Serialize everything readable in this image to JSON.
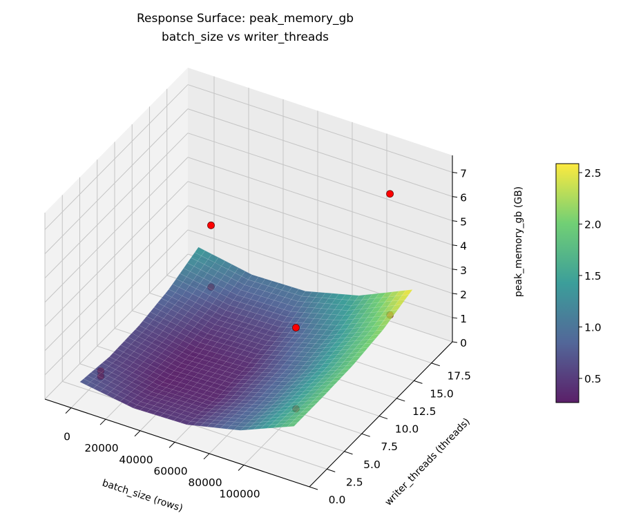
{
  "chart_data": {
    "type": "surface3d",
    "title": "Response Surface: peak_memory_gb",
    "subtitle": "batch_size vs writer_threads",
    "xlabel": "batch_size (rows)",
    "ylabel": "writer_threads (threads)",
    "zlabel": "peak_memory_gb (GB)",
    "xlim": [
      -15200,
      138000
    ],
    "ylim": [
      0,
      20.5
    ],
    "zlim": [
      0,
      7.7
    ],
    "x_ticks": [
      "0",
      "20000",
      "40000",
      "60000",
      "80000",
      "100000"
    ],
    "y_ticks": [
      "0.0",
      "2.5",
      "5.0",
      "7.5",
      "10.0",
      "12.5",
      "15.0",
      "17.5"
    ],
    "z_ticks": [
      "0",
      "1",
      "2",
      "3",
      "4",
      "5",
      "6",
      "7"
    ],
    "grid": true,
    "colormap": "viridis",
    "colorbar": {
      "range": [
        0.265,
        2.587
      ],
      "ticks": [
        "0.5",
        "1.0",
        "1.5",
        "2.0",
        "2.5"
      ],
      "placement": "right"
    },
    "surface": {
      "x": [
        1000,
        32000,
        63000,
        94000,
        125000
      ],
      "y": [
        1,
        5.25,
        9.5,
        13.75,
        18
      ],
      "z": [
        [
          0.8,
          0.45,
          0.5,
          1.0,
          1.9
        ],
        [
          0.6,
          0.28,
          0.34,
          0.95,
          1.9
        ],
        [
          0.65,
          0.3,
          0.38,
          1.0,
          1.95
        ],
        [
          0.9,
          0.55,
          0.6,
          1.2,
          2.15
        ],
        [
          1.4,
          1.0,
          1.05,
          1.6,
          2.58
        ]
      ]
    },
    "points": [
      {
        "x": 1000,
        "y": 4,
        "z": 0.38
      },
      {
        "x": 1000,
        "y": 4,
        "z": 0.16
      },
      {
        "x": 16384,
        "y": 16,
        "z": 0.7
      },
      {
        "x": 16384,
        "y": 16,
        "z": 3.25
      },
      {
        "x": 110000,
        "y": 5,
        "z": 1.1
      },
      {
        "x": 110000,
        "y": 5,
        "z": 4.45
      },
      {
        "x": 120000,
        "y": 16,
        "z": 2.0
      },
      {
        "x": 120000,
        "y": 16,
        "z": 7.0
      }
    ],
    "point_color": "#ff0000"
  }
}
